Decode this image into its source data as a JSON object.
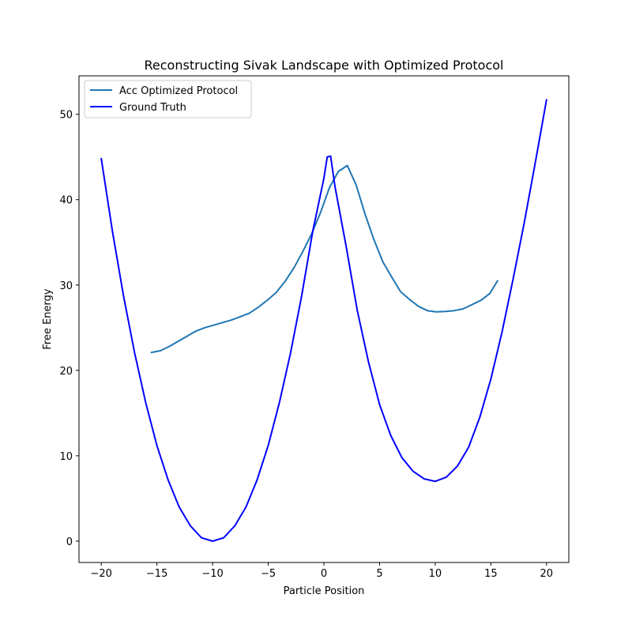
{
  "chart_data": {
    "type": "line",
    "title": "Reconstructing Sivak Landscape with Optimized Protocol",
    "xlabel": "Particle Position",
    "ylabel": "Free Energy",
    "xlim": [
      -22,
      22
    ],
    "ylim": [
      -2.5,
      54.5
    ],
    "xticks": [
      -20,
      -15,
      -10,
      -5,
      0,
      5,
      10,
      15,
      20
    ],
    "yticks": [
      0,
      10,
      20,
      30,
      40,
      50
    ],
    "grid": false,
    "legend_position": "top-left",
    "series": [
      {
        "name": "Acc Optimized Protocol",
        "color": "#1f77b4",
        "x": [
          -15.5,
          -14.7,
          -13.9,
          -13.1,
          -12.3,
          -11.5,
          -10.7,
          -9.9,
          -9.1,
          -8.3,
          -7.5,
          -6.7,
          -5.9,
          -5.1,
          -4.3,
          -3.5,
          -2.7,
          -1.9,
          -1.1,
          -0.3,
          0.5,
          1.3,
          2.1,
          2.9,
          3.7,
          4.5,
          5.3,
          6.1,
          6.9,
          7.7,
          8.5,
          9.3,
          10.1,
          10.9,
          11.7,
          12.5,
          13.3,
          14.1,
          14.9,
          15.6
        ],
        "y": [
          22.1,
          22.3,
          22.8,
          23.4,
          24.0,
          24.6,
          25.0,
          25.3,
          25.6,
          25.9,
          26.3,
          26.7,
          27.4,
          28.2,
          29.1,
          30.4,
          32.0,
          33.9,
          36.0,
          38.5,
          41.4,
          43.3,
          44.0,
          41.7,
          38.3,
          35.3,
          32.7,
          30.9,
          29.2,
          28.3,
          27.5,
          27.0,
          26.85,
          26.9,
          27.0,
          27.2,
          27.7,
          28.2,
          29.0,
          30.5
        ]
      },
      {
        "name": "Ground Truth",
        "color": "#0000ff",
        "x": [
          -20,
          -19,
          -18,
          -17,
          -16,
          -15,
          -14,
          -13,
          -12,
          -11,
          -10,
          -9,
          -8,
          -7,
          -6,
          -5,
          -4,
          -3,
          -2,
          -1,
          0,
          0.3,
          0.6,
          1,
          2,
          3,
          4,
          5,
          6,
          7,
          8,
          9,
          10,
          11,
          12,
          13,
          14,
          15,
          16,
          17,
          18,
          19,
          20
        ],
        "y": [
          44.8,
          36.3,
          28.7,
          22.0,
          16.2,
          11.2,
          7.2,
          4.0,
          1.8,
          0.4,
          0.0,
          0.4,
          1.8,
          4.0,
          7.2,
          11.2,
          16.2,
          22.0,
          28.7,
          36.3,
          42.5,
          45.0,
          45.1,
          41.5,
          34.5,
          27.0,
          21.0,
          16.0,
          12.4,
          9.8,
          8.2,
          7.3,
          7.0,
          7.5,
          8.8,
          11.0,
          14.5,
          19.0,
          24.5,
          30.7,
          37.3,
          44.4,
          51.7
        ]
      }
    ]
  }
}
